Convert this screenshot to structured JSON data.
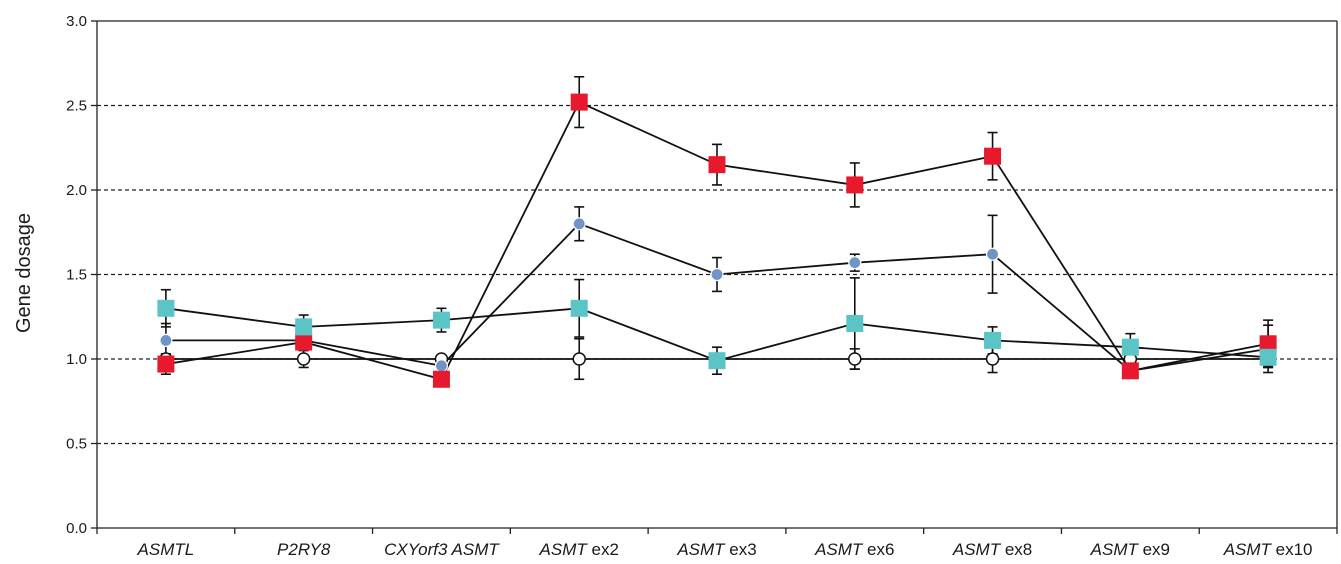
{
  "chart_data": {
    "type": "line",
    "ylabel": "Gene dosage",
    "xlabel": "",
    "ylim": [
      0,
      3
    ],
    "yticks": [
      "0.0",
      "0.5",
      "1.0",
      "1.5",
      "2.0",
      "2.5",
      "3.0"
    ],
    "gridlines": [
      0.5,
      1.0,
      1.5,
      2.0,
      2.5
    ],
    "grid_style": "dashed horizontal",
    "categories": [
      {
        "italic": "ASMTL",
        "plain": ""
      },
      {
        "italic": "P2RY8",
        "plain": ""
      },
      {
        "italic": "CXYorf3 ASMT",
        "plain": ""
      },
      {
        "italic": "ASMT",
        "plain": " ex2"
      },
      {
        "italic": "ASMT",
        "plain": " ex3"
      },
      {
        "italic": "ASMT",
        "plain": " ex6"
      },
      {
        "italic": "ASMT",
        "plain": " ex8"
      },
      {
        "italic": "ASMT",
        "plain": " ex9"
      },
      {
        "italic": "ASMT",
        "plain": " ex10"
      }
    ],
    "series": [
      {
        "marker": "circle-open",
        "color": "#ffffff",
        "values": [
          1.0,
          1.0,
          1.0,
          1.0,
          1.0,
          1.0,
          1.0,
          1.0,
          1.0
        ],
        "err": [
          0.03,
          0.05,
          0.0,
          0.12,
          0.03,
          0.06,
          0.08,
          0.03,
          0.04
        ]
      },
      {
        "marker": "circle",
        "color": "#6f94c8",
        "values": [
          1.11,
          1.11,
          0.96,
          1.8,
          1.5,
          1.57,
          1.62,
          0.93,
          1.06
        ],
        "err": [
          0.1,
          0.05,
          0.0,
          0.1,
          0.1,
          0.05,
          0.23,
          0.03,
          0.14
        ]
      },
      {
        "marker": "square",
        "color": "#e8192c",
        "values": [
          0.97,
          1.1,
          0.88,
          2.52,
          2.15,
          2.03,
          2.2,
          0.93,
          1.09
        ],
        "err": [
          0.06,
          0.03,
          0.0,
          0.15,
          0.12,
          0.13,
          0.14,
          0.03,
          0.14
        ]
      },
      {
        "marker": "square",
        "color": "#5bc4c6",
        "values": [
          1.3,
          1.19,
          1.23,
          1.3,
          0.99,
          1.21,
          1.11,
          1.07,
          1.01
        ],
        "err": [
          0.11,
          0.07,
          0.07,
          0.17,
          0.08,
          0.27,
          0.08,
          0.08,
          0.06
        ]
      }
    ]
  }
}
